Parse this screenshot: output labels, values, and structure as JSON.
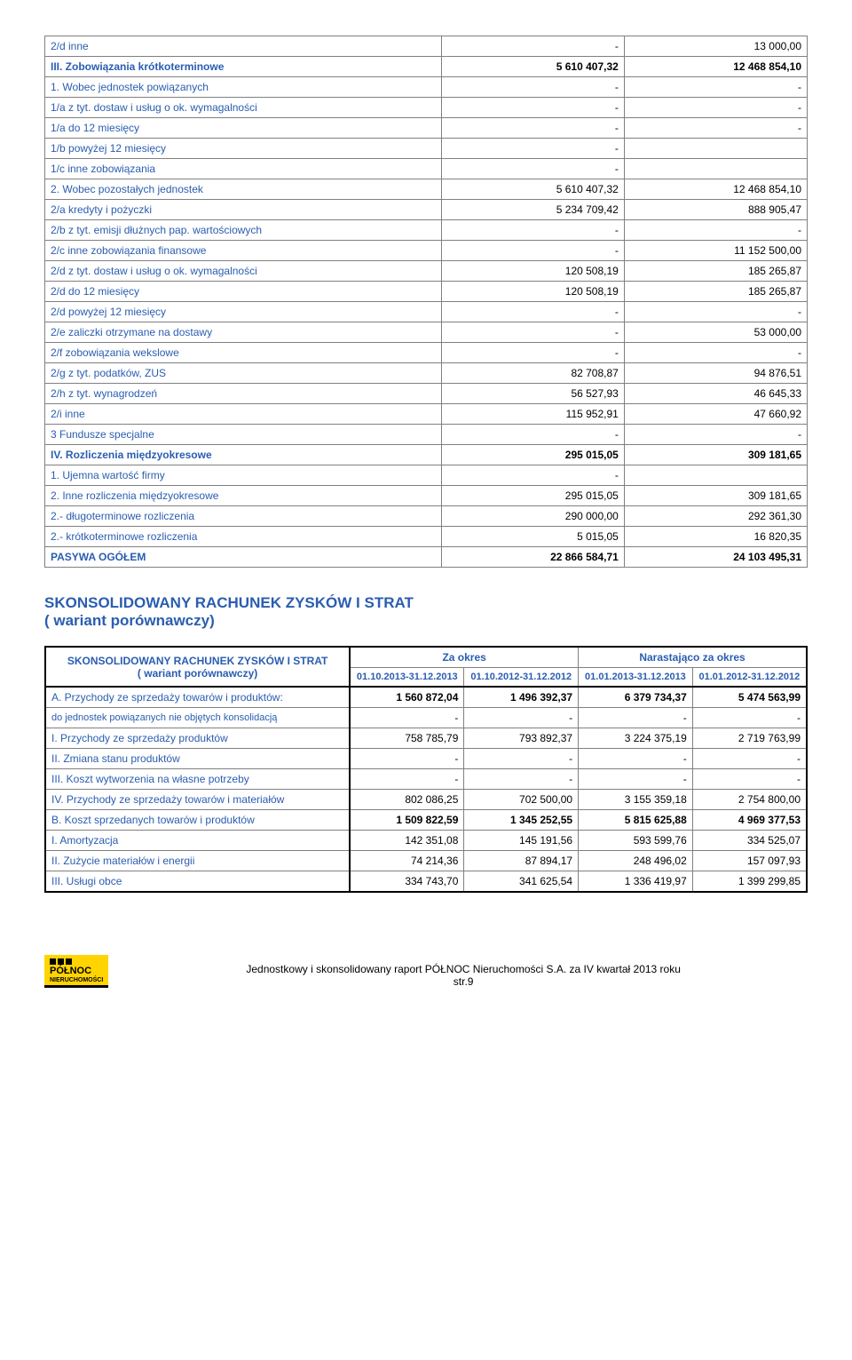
{
  "table1": {
    "rows": [
      {
        "label": "2/d inne",
        "v1": "-",
        "v2": "13 000,00",
        "style": "blue-link"
      },
      {
        "label": "III. Zobowiązania krótkoterminowe",
        "v1": "5 610 407,32",
        "v2": "12 468 854,10",
        "style": "blue-link bold"
      },
      {
        "label": "1. Wobec jednostek powiązanych",
        "v1": "-",
        "v2": "-",
        "style": "blue-link"
      },
      {
        "label": "1/a z tyt. dostaw i usług o ok. wymagalności",
        "v1": "-",
        "v2": "-",
        "style": "blue-link"
      },
      {
        "label": "1/a do 12 miesięcy",
        "v1": "-",
        "v2": "-",
        "style": "blue-link"
      },
      {
        "label": "1/b powyżej 12 miesięcy",
        "v1": "-",
        "v2": "",
        "style": "blue-link"
      },
      {
        "label": "1/c inne zobowiązania",
        "v1": "-",
        "v2": "",
        "style": "blue-link"
      },
      {
        "label": "2. Wobec pozostałych jednostek",
        "v1": "5 610 407,32",
        "v2": "12 468 854,10",
        "style": "blue-link"
      },
      {
        "label": "2/a kredyty i pożyczki",
        "v1": "5 234 709,42",
        "v2": "888 905,47",
        "style": "blue-link"
      },
      {
        "label": "2/b z tyt. emisji dłużnych pap. wartościowych",
        "v1": "-",
        "v2": "-",
        "style": "blue-link"
      },
      {
        "label": "2/c inne zobowiązania finansowe",
        "v1": "-",
        "v2": "11 152 500,00",
        "style": "blue-link"
      },
      {
        "label": "2/d z tyt. dostaw i usług o ok. wymagalności",
        "v1": "120 508,19",
        "v2": "185 265,87",
        "style": "blue-link"
      },
      {
        "label": "2/d do 12 miesięcy",
        "v1": "120 508,19",
        "v2": "185 265,87",
        "style": "blue-link"
      },
      {
        "label": "2/d powyżej 12 miesięcy",
        "v1": "-",
        "v2": "-",
        "style": "blue-link"
      },
      {
        "label": "2/e zaliczki otrzymane na dostawy",
        "v1": "-",
        "v2": "53 000,00",
        "style": "blue-link"
      },
      {
        "label": "2/f zobowiązania wekslowe",
        "v1": "-",
        "v2": "-",
        "style": "blue-link"
      },
      {
        "label": "2/g z tyt. podatków, ZUS",
        "v1": "82 708,87",
        "v2": "94 876,51",
        "style": "blue-link"
      },
      {
        "label": "2/h z tyt. wynagrodzeń",
        "v1": "56 527,93",
        "v2": "46 645,33",
        "style": "blue-link"
      },
      {
        "label": "2/i inne",
        "v1": "115 952,91",
        "v2": "47 660,92",
        "style": "blue-link"
      },
      {
        "label": "3 Fundusze specjalne",
        "v1": "-",
        "v2": "-",
        "style": "blue-link"
      },
      {
        "label": "IV. Rozliczenia międzyokresowe",
        "v1": "295 015,05",
        "v2": "309 181,65",
        "style": "blue-link bold"
      },
      {
        "label": "1. Ujemna wartość firmy",
        "v1": "-",
        "v2": "",
        "style": "blue-link"
      },
      {
        "label": "2. Inne rozliczenia międzyokresowe",
        "v1": "295 015,05",
        "v2": "309 181,65",
        "style": "blue-link"
      },
      {
        "label": "2.- długoterminowe rozliczenia",
        "v1": "290 000,00",
        "v2": "292 361,30",
        "style": "blue-link"
      },
      {
        "label": "2.- krótkoterminowe rozliczenia",
        "v1": "5 015,05",
        "v2": "16 820,35",
        "style": "blue-link"
      },
      {
        "label": "PASYWA OGÓŁEM",
        "v1": "22 866 584,71",
        "v2": "24 103 495,31",
        "style": "blue-link bold"
      }
    ]
  },
  "section_title": "SKONSOLIDOWANY RACHUNEK ZYSKÓW I STRAT\n( wariant porównawczy)",
  "table2": {
    "hdr_left": "SKONSOLIDOWANY RACHUNEK ZYSKÓW I STRAT\n( wariant porównawczy)",
    "hdr_a": "Za okres",
    "hdr_b": "Narastająco za okres",
    "periods": [
      "01.10.2013-31.12.2013",
      "01.10.2012-31.12.2012",
      "01.01.2013-31.12.2013",
      "01.01.2012-31.12.2012"
    ],
    "rows": [
      {
        "label": "A. Przychody ze sprzedaży towarów i produktów:",
        "v": [
          "1 560 872,04",
          "1 496 392,37",
          "6 379 734,37",
          "5 474 563,99"
        ],
        "style": "blue-link bold"
      },
      {
        "label": "do jednostek powiązanych nie objętych konsolidacją",
        "v": [
          "-",
          "-",
          "-",
          "-"
        ],
        "style": "blue-link small"
      },
      {
        "label": "I. Przychody ze sprzedaży produktów",
        "v": [
          "758 785,79",
          "793 892,37",
          "3 224 375,19",
          "2 719 763,99"
        ],
        "style": "blue-link"
      },
      {
        "label": "II. Zmiana stanu produktów",
        "v": [
          "-",
          "-",
          "-",
          "-"
        ],
        "style": "blue-link"
      },
      {
        "label": "III. Koszt wytworzenia na własne potrzeby",
        "v": [
          "-",
          "-",
          "-",
          "-"
        ],
        "style": "blue-link"
      },
      {
        "label": "IV. Przychody ze sprzedaży towarów i materiałów",
        "v": [
          "802 086,25",
          "702 500,00",
          "3 155 359,18",
          "2 754 800,00"
        ],
        "style": "blue-link"
      },
      {
        "label": "B. Koszt sprzedanych towarów i produktów",
        "v": [
          "1 509 822,59",
          "1 345 252,55",
          "5 815 625,88",
          "4 969 377,53"
        ],
        "style": "blue-link bold"
      },
      {
        "label": "I. Amortyzacja",
        "v": [
          "142 351,08",
          "145 191,56",
          "593 599,76",
          "334 525,07"
        ],
        "style": "blue-link"
      },
      {
        "label": "II. Zużycie materiałów i energii",
        "v": [
          "74 214,36",
          "87 894,17",
          "248 496,02",
          "157 097,93"
        ],
        "style": "blue-link"
      },
      {
        "label": "III. Usługi obce",
        "v": [
          "334 743,70",
          "341 625,54",
          "1 336 419,97",
          "1 399 299,85"
        ],
        "style": "blue-link"
      }
    ]
  },
  "footer": {
    "logo_top": "PÓŁNOC",
    "logo_bottom": "NIERUCHOMOŚCI",
    "text": "Jednostkowy i skonsolidowany raport PÓŁNOC Nieruchomości S.A. za IV kwartał 2013 roku",
    "page": "str.9"
  }
}
